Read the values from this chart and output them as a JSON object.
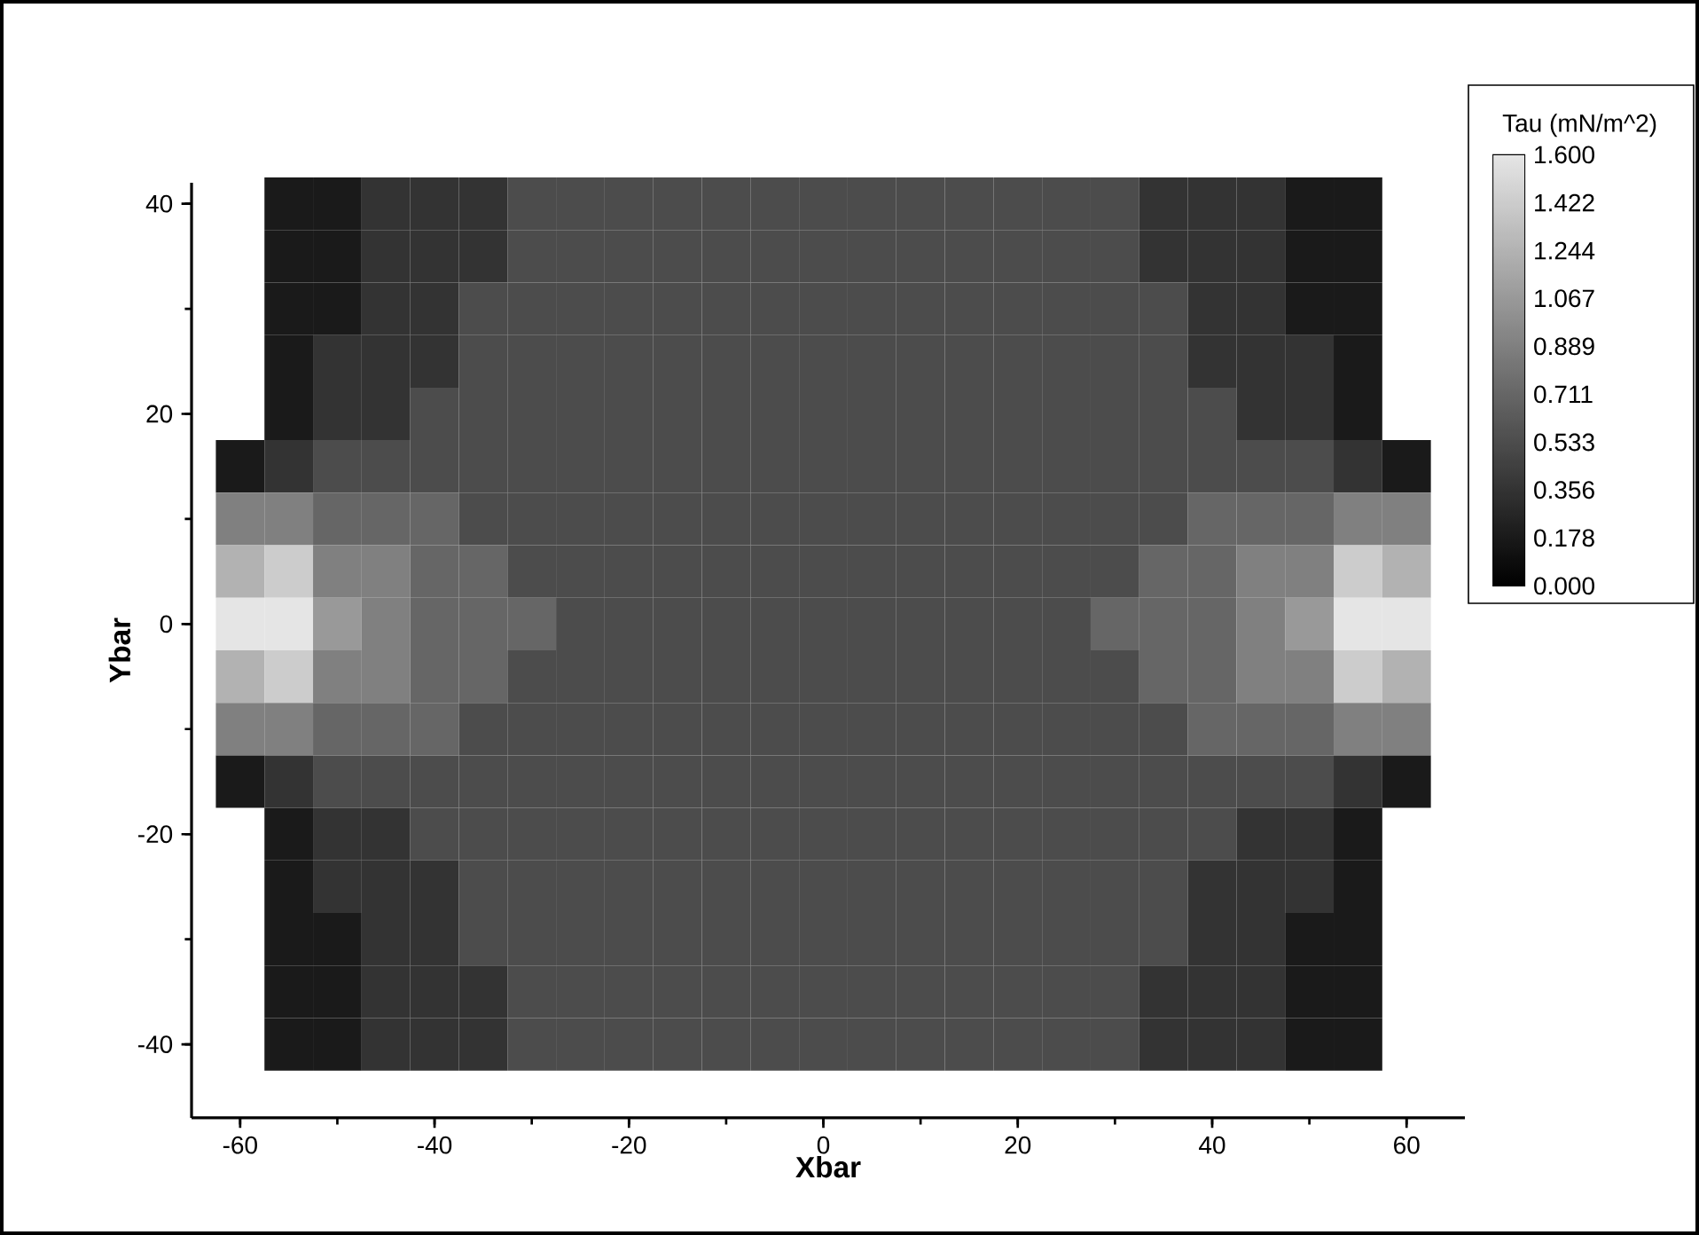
{
  "chart_data": {
    "type": "heatmap",
    "xlabel": "Xbar",
    "ylabel": "Ybar",
    "clabel": "Tau (mN/m^2)",
    "categories": [
      "-60",
      null,
      null,
      null,
      "-40",
      null,
      null,
      null,
      "-20",
      null,
      null,
      null,
      "0",
      null,
      null,
      null,
      "20",
      null,
      null,
      null,
      "40",
      null,
      null,
      null,
      "60"
    ],
    "y_categories": [
      "40",
      null,
      null,
      null,
      "20",
      null,
      null,
      null,
      "0",
      null,
      null,
      null,
      "-20",
      null,
      null,
      null,
      "-40"
    ],
    "clim": [
      0,
      1.6
    ],
    "cticks": [
      {
        "value": 0,
        "label": "0.000"
      },
      {
        "value": 0.178,
        "label": "0.178"
      },
      {
        "value": 0.356,
        "label": "0.356"
      },
      {
        "value": 0.533,
        "label": "0.533"
      },
      {
        "value": 0.711,
        "label": "0.711"
      },
      {
        "value": 0.889,
        "label": "0.889"
      },
      {
        "value": 1.067,
        "label": "1.067"
      },
      {
        "value": 1.244,
        "label": "1.244"
      },
      {
        "value": 1.422,
        "label": "1.422"
      },
      {
        "value": 1.6,
        "label": "1.600"
      }
    ],
    "cells": [
      [
        null,
        0.178,
        0.178,
        0.356,
        0.356,
        0.356,
        0.533,
        0.533,
        0.533,
        0.533,
        0.533,
        0.533,
        0.533,
        0.533,
        0.533,
        0.533,
        0.533,
        0.533,
        0.533,
        0.356,
        0.356,
        0.356,
        0.178,
        0.178,
        null
      ],
      [
        null,
        0.178,
        0.178,
        0.356,
        0.356,
        0.356,
        0.533,
        0.533,
        0.533,
        0.533,
        0.533,
        0.533,
        0.533,
        0.533,
        0.533,
        0.533,
        0.533,
        0.533,
        0.533,
        0.356,
        0.356,
        0.356,
        0.178,
        0.178,
        null
      ],
      [
        null,
        0.178,
        0.178,
        0.356,
        0.356,
        0.533,
        0.533,
        0.533,
        0.533,
        0.533,
        0.533,
        0.533,
        0.533,
        0.533,
        0.533,
        0.533,
        0.533,
        0.533,
        0.533,
        0.533,
        0.356,
        0.356,
        0.178,
        0.178,
        null
      ],
      [
        null,
        0.178,
        0.356,
        0.356,
        0.356,
        0.533,
        0.533,
        0.533,
        0.533,
        0.533,
        0.533,
        0.533,
        0.533,
        0.533,
        0.533,
        0.533,
        0.533,
        0.533,
        0.533,
        0.533,
        0.356,
        0.356,
        0.356,
        0.178,
        null
      ],
      [
        null,
        0.178,
        0.356,
        0.356,
        0.533,
        0.533,
        0.533,
        0.533,
        0.533,
        0.533,
        0.533,
        0.533,
        0.533,
        0.533,
        0.533,
        0.533,
        0.533,
        0.533,
        0.533,
        0.533,
        0.533,
        0.356,
        0.356,
        0.178,
        null
      ],
      [
        0.178,
        0.356,
        0.533,
        0.533,
        0.533,
        0.533,
        0.533,
        0.533,
        0.533,
        0.533,
        0.533,
        0.533,
        0.533,
        0.533,
        0.533,
        0.533,
        0.533,
        0.533,
        0.533,
        0.533,
        0.533,
        0.533,
        0.533,
        0.356,
        0.178
      ],
      [
        0.889,
        0.889,
        0.711,
        0.711,
        0.711,
        0.533,
        0.533,
        0.533,
        0.533,
        0.533,
        0.533,
        0.533,
        0.533,
        0.533,
        0.533,
        0.533,
        0.533,
        0.533,
        0.533,
        0.533,
        0.711,
        0.711,
        0.711,
        0.889,
        0.889
      ],
      [
        1.244,
        1.422,
        0.889,
        0.889,
        0.711,
        0.711,
        0.533,
        0.533,
        0.533,
        0.533,
        0.533,
        0.533,
        0.533,
        0.533,
        0.533,
        0.533,
        0.533,
        0.533,
        0.533,
        0.711,
        0.711,
        0.889,
        0.889,
        1.422,
        1.244
      ],
      [
        1.6,
        1.6,
        1.067,
        0.889,
        0.711,
        0.711,
        0.711,
        0.533,
        0.533,
        0.533,
        0.533,
        0.533,
        0.533,
        0.533,
        0.533,
        0.533,
        0.533,
        0.533,
        0.711,
        0.711,
        0.711,
        0.889,
        1.067,
        1.6,
        1.6
      ],
      [
        1.244,
        1.422,
        0.889,
        0.889,
        0.711,
        0.711,
        0.533,
        0.533,
        0.533,
        0.533,
        0.533,
        0.533,
        0.533,
        0.533,
        0.533,
        0.533,
        0.533,
        0.533,
        0.533,
        0.711,
        0.711,
        0.889,
        0.889,
        1.422,
        1.244
      ],
      [
        0.889,
        0.889,
        0.711,
        0.711,
        0.711,
        0.533,
        0.533,
        0.533,
        0.533,
        0.533,
        0.533,
        0.533,
        0.533,
        0.533,
        0.533,
        0.533,
        0.533,
        0.533,
        0.533,
        0.533,
        0.711,
        0.711,
        0.711,
        0.889,
        0.889
      ],
      [
        0.178,
        0.356,
        0.533,
        0.533,
        0.533,
        0.533,
        0.533,
        0.533,
        0.533,
        0.533,
        0.533,
        0.533,
        0.533,
        0.533,
        0.533,
        0.533,
        0.533,
        0.533,
        0.533,
        0.533,
        0.533,
        0.533,
        0.533,
        0.356,
        0.178
      ],
      [
        null,
        0.178,
        0.356,
        0.356,
        0.533,
        0.533,
        0.533,
        0.533,
        0.533,
        0.533,
        0.533,
        0.533,
        0.533,
        0.533,
        0.533,
        0.533,
        0.533,
        0.533,
        0.533,
        0.533,
        0.533,
        0.356,
        0.356,
        0.178,
        null
      ],
      [
        null,
        0.178,
        0.356,
        0.356,
        0.356,
        0.533,
        0.533,
        0.533,
        0.533,
        0.533,
        0.533,
        0.533,
        0.533,
        0.533,
        0.533,
        0.533,
        0.533,
        0.533,
        0.533,
        0.533,
        0.356,
        0.356,
        0.356,
        0.178,
        null
      ],
      [
        null,
        0.178,
        0.178,
        0.356,
        0.356,
        0.533,
        0.533,
        0.533,
        0.533,
        0.533,
        0.533,
        0.533,
        0.533,
        0.533,
        0.533,
        0.533,
        0.533,
        0.533,
        0.533,
        0.533,
        0.356,
        0.356,
        0.178,
        0.178,
        null
      ],
      [
        null,
        0.178,
        0.178,
        0.356,
        0.356,
        0.356,
        0.533,
        0.533,
        0.533,
        0.533,
        0.533,
        0.533,
        0.533,
        0.533,
        0.533,
        0.533,
        0.533,
        0.533,
        0.533,
        0.356,
        0.356,
        0.356,
        0.178,
        0.178,
        null
      ],
      [
        null,
        0.178,
        0.178,
        0.356,
        0.356,
        0.356,
        0.533,
        0.533,
        0.533,
        0.533,
        0.533,
        0.533,
        0.533,
        0.533,
        0.533,
        0.533,
        0.533,
        0.533,
        0.533,
        0.356,
        0.356,
        0.356,
        0.178,
        0.178,
        null
      ]
    ]
  }
}
